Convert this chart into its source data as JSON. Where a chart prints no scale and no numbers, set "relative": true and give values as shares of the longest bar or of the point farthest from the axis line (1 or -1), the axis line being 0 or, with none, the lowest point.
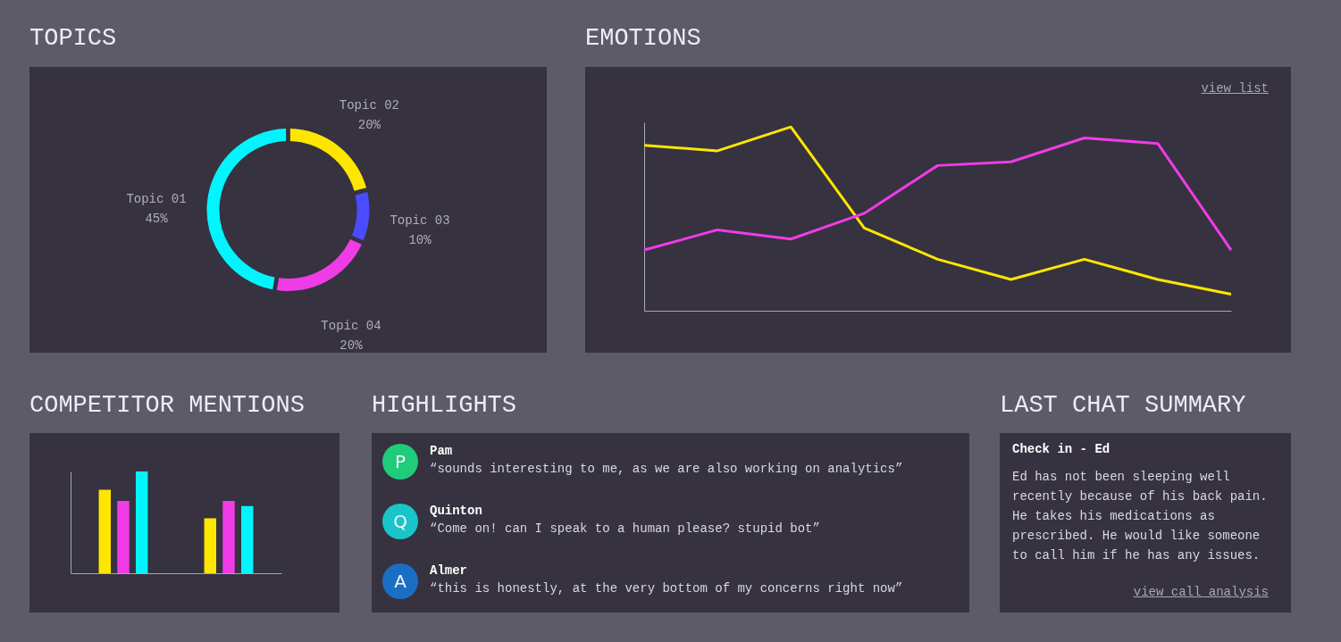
{
  "chart_data": [
    {
      "type": "donut",
      "title": "TOPICS",
      "categories": [
        "Topic 01",
        "Topic 02",
        "Topic 03",
        "Topic 04"
      ],
      "values": [
        45,
        20,
        10,
        20
      ],
      "value_labels": [
        "45%",
        "20%",
        "10%",
        "20%"
      ],
      "colors": [
        "#00f5ff",
        "#ffe600",
        "#4b4bff",
        "#f03ce6"
      ]
    },
    {
      "type": "line",
      "title": "EMOTIONS",
      "relative": true,
      "categories": [
        null,
        null,
        null,
        null,
        null,
        null,
        null,
        null,
        null
      ],
      "series": [
        {
          "color": "#ffe600",
          "values": [
            0.9,
            0.87,
            1,
            0.45,
            0.28,
            0.17,
            0.28,
            0.17,
            0.09
          ]
        },
        {
          "color": "#f03ce6",
          "values": [
            0.33,
            0.44,
            0.39,
            0.53,
            0.79,
            0.81,
            0.94,
            0.91,
            0.33
          ]
        }
      ],
      "annotations": [
        "view list"
      ]
    },
    {
      "type": "bar",
      "title": "COMPETITOR MENTIONS",
      "relative": true,
      "categories": [
        null,
        null
      ],
      "series": [
        {
          "color": "#ffe600",
          "values": [
            0.82,
            0.54
          ]
        },
        {
          "color": "#f03ce6",
          "values": [
            0.71,
            0.71
          ]
        },
        {
          "color": "#00f5ff",
          "values": [
            1,
            0.66
          ]
        }
      ]
    },
    {
      "type": "other",
      "title": "HIGHLIGHTS",
      "annotations": [
        "P",
        "Pam",
        "“sounds interesting to me, as we are also working on analytics”",
        "Q",
        "Quinton",
        "“Come on! can I speak to a human please? stupid bot”",
        "A",
        "Almer",
        "“this is honestly, at the very bottom of my concerns right now”"
      ]
    },
    {
      "type": "other",
      "title": "LAST CHAT SUMMARY",
      "subtitle": "Check in - Ed",
      "annotations": [
        "Ed has not been sleeping well recently because of his back pain. He takes his medications as prescribed. He would like someone to call him if he has any issues.",
        "view call analysis"
      ]
    }
  ]
}
